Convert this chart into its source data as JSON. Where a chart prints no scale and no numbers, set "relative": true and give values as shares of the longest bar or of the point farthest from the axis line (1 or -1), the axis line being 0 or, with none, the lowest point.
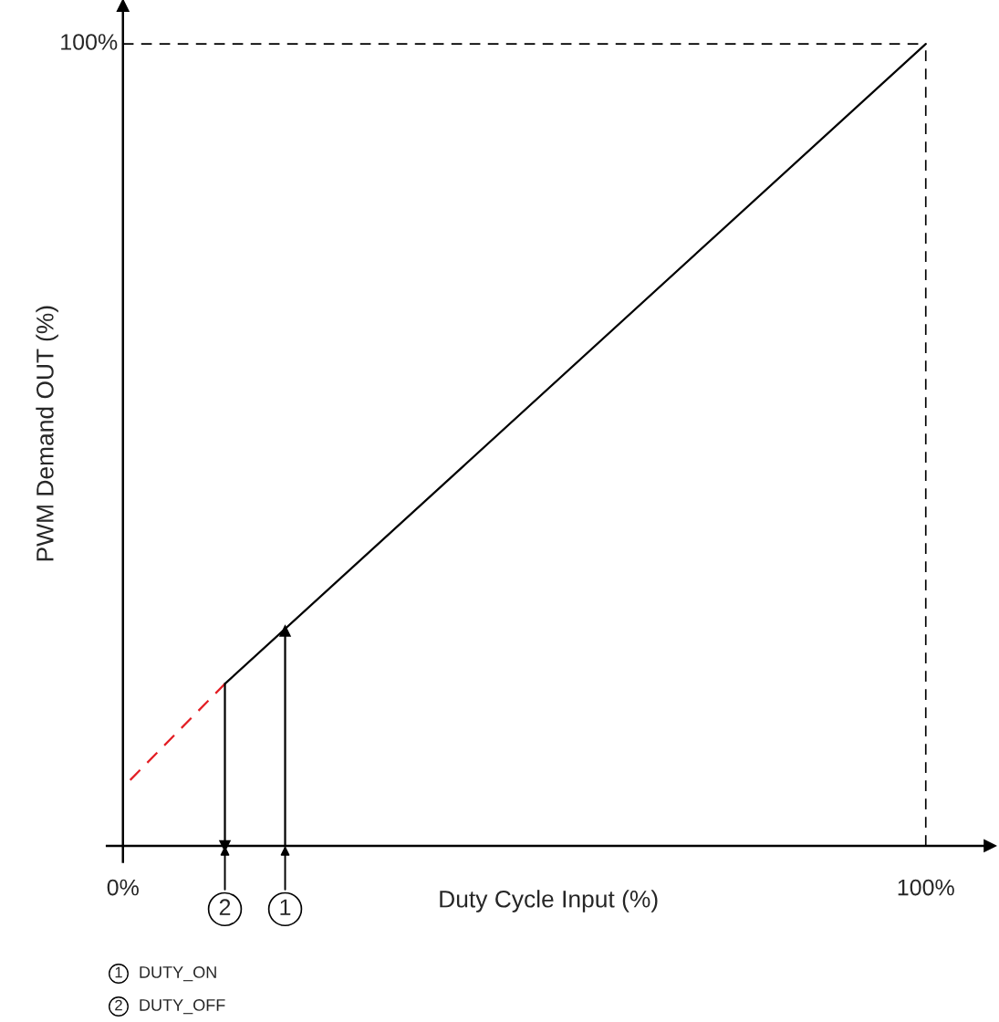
{
  "chart_data": {
    "type": "line",
    "xlabel": "Duty Cycle Input (%)",
    "ylabel": "PWM Demand OUT (%)",
    "relative": true,
    "xlim": [
      -2,
      108
    ],
    "xticks": [
      {
        "value": 0,
        "label": "0%"
      },
      {
        "value": 100,
        "label": "100%"
      }
    ],
    "grid": false,
    "series": [
      {
        "color": "#000000",
        "line_style": "solid",
        "x": [
          12.7,
          100
        ],
        "values": [
          0.202,
          1
        ]
      },
      {
        "color": "#e31e24",
        "line_style": "dashed",
        "x": [
          0.9,
          12.7
        ],
        "values": [
          0.082,
          0.202
        ]
      },
      {
        "color": "#000000",
        "line_style": "solid",
        "x": [
          20.2,
          20.2
        ],
        "values": [
          0,
          0.268
        ]
      },
      {
        "color": "#000000",
        "line_style": "solid",
        "x": [
          12.7,
          12.7
        ],
        "values": [
          0.202,
          0
        ]
      }
    ],
    "ref_lines": [
      {
        "axis": "x",
        "value": 100,
        "color": "#000000",
        "line_style": "dashed"
      },
      {
        "axis": "y",
        "value": 1,
        "color": "#000000",
        "line_style": "dashed",
        "label": "100%"
      }
    ],
    "annotations": [
      {
        "text": "1",
        "x": 20.2,
        "y": 0
      },
      {
        "text": "2",
        "x": 12.7,
        "y": 0
      },
      "1",
      "DUTY_ON",
      "2",
      "DUTY_OFF"
    ]
  }
}
